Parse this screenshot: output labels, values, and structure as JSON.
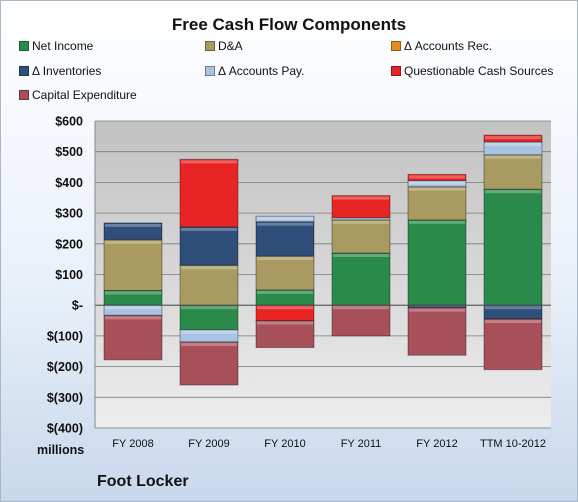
{
  "colors": {
    "net_income": "#2a8a4a",
    "da": "#a89a60",
    "accounts_rec": "#e58a26",
    "inventories": "#2f4e7a",
    "accounts_pay": "#a8c4e2",
    "questionable": "#e82424",
    "capex": "#a8505a"
  },
  "chart_data": {
    "type": "bar",
    "stacked": true,
    "title": "Free Cash Flow Components",
    "units_label": "millions",
    "company": "Foot Locker",
    "categories": [
      "FY 2008",
      "FY 2009",
      "FY 2010",
      "FY 2011",
      "FY 2012",
      "TTM 10-2012"
    ],
    "ylim": [
      -400,
      600
    ],
    "yticks": [
      {
        "value": 600,
        "label": "$600"
      },
      {
        "value": 500,
        "label": "$500"
      },
      {
        "value": 400,
        "label": "$400"
      },
      {
        "value": 300,
        "label": "$300"
      },
      {
        "value": 200,
        "label": "$200"
      },
      {
        "value": 100,
        "label": "$100"
      },
      {
        "value": 0,
        "label": "$-"
      },
      {
        "value": -100,
        "label": "$(100)"
      },
      {
        "value": -200,
        "label": "$(200)"
      },
      {
        "value": -300,
        "label": "$(300)"
      },
      {
        "value": -400,
        "label": "$(400)"
      }
    ],
    "grid": true,
    "legend_position": "top",
    "series": [
      {
        "name": "Net Income",
        "key": "net_income",
        "values": [
          48,
          -80,
          50,
          170,
          278,
          378
        ]
      },
      {
        "name": "D&A",
        "key": "da",
        "values": [
          165,
          130,
          110,
          108,
          108,
          112
        ]
      },
      {
        "name": "Δ Accounts Rec.",
        "key": "accounts_rec",
        "values": [
          0,
          0,
          0,
          0,
          0,
          0
        ]
      },
      {
        "name": "Δ Inventories",
        "key": "inventories",
        "values": [
          55,
          125,
          112,
          0,
          -8,
          -45
        ]
      },
      {
        "name": "Δ Accounts Pay.",
        "key": "accounts_pay",
        "values": [
          -33,
          -40,
          18,
          7,
          20,
          42
        ]
      },
      {
        "name": "Questionable Cash Sources",
        "key": "questionable",
        "values": [
          0,
          220,
          -50,
          72,
          20,
          22
        ]
      },
      {
        "name": "Capital Expenditure",
        "key": "capex",
        "values": [
          -145,
          -140,
          -88,
          -100,
          -155,
          -165
        ]
      }
    ]
  }
}
